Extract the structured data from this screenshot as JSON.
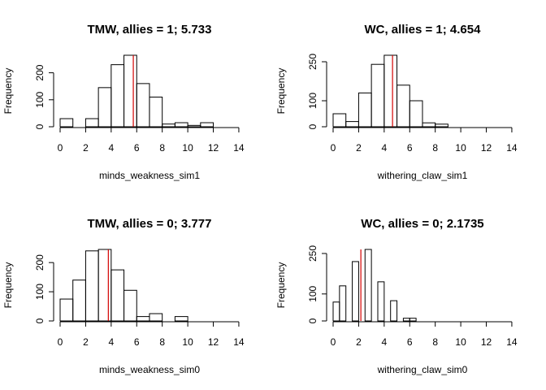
{
  "chart_data": [
    {
      "type": "bar",
      "title": "TMW, allies = 1; 5.733",
      "xlabel": "minds_weakness_sim1",
      "ylabel": "Frequency",
      "bin_width": 1,
      "bin_edges": [
        0,
        1,
        2,
        3,
        4,
        5,
        6,
        7,
        8,
        9,
        10,
        11,
        12
      ],
      "values": [
        30,
        0,
        30,
        145,
        230,
        265,
        160,
        110,
        10,
        15,
        5,
        15
      ],
      "mean": 5.733,
      "xlim": [
        0,
        14
      ],
      "ylim": [
        0,
        265
      ],
      "xticks": [
        "0",
        "2",
        "4",
        "6",
        "8",
        "10",
        "12",
        "14"
      ],
      "yticks": [
        "0",
        "100",
        "200"
      ],
      "grid": false
    },
    {
      "type": "bar",
      "title": "WC, allies = 1; 4.654",
      "xlabel": "withering_claw_sim1",
      "ylabel": "Frequency",
      "bin_width": 1,
      "bin_edges": [
        0,
        1,
        2,
        3,
        4,
        5,
        6,
        7,
        8,
        9
      ],
      "values": [
        50,
        20,
        130,
        240,
        275,
        160,
        100,
        15,
        10
      ],
      "mean": 4.654,
      "xlim": [
        0,
        14
      ],
      "ylim": [
        0,
        275
      ],
      "xticks": [
        "0",
        "2",
        "4",
        "6",
        "8",
        "10",
        "12",
        "14"
      ],
      "yticks": [
        "0",
        "100",
        "250"
      ],
      "grid": false
    },
    {
      "type": "bar",
      "title": "TMW, allies = 0; 3.777",
      "xlabel": "minds_weakness_sim0",
      "ylabel": "Frequency",
      "bin_width": 1,
      "bin_edges": [
        0,
        1,
        2,
        3,
        4,
        5,
        6,
        7,
        8,
        9,
        10
      ],
      "values": [
        75,
        140,
        240,
        245,
        175,
        105,
        15,
        25,
        0,
        15
      ],
      "mean": 3.777,
      "xlim": [
        0,
        14
      ],
      "ylim": [
        0,
        245
      ],
      "xticks": [
        "0",
        "2",
        "4",
        "6",
        "8",
        "10",
        "12",
        "14"
      ],
      "yticks": [
        "0",
        "100",
        "200"
      ],
      "grid": false
    },
    {
      "type": "bar",
      "title": "WC, allies = 0; 2.1735",
      "xlabel": "withering_claw_sim0",
      "ylabel": "Frequency",
      "bin_width": 0.5,
      "bin_edges": [
        0,
        0.5,
        1,
        1.5,
        2,
        2.5,
        3,
        3.5,
        4,
        4.5,
        5,
        5.5,
        6,
        6.5
      ],
      "values": [
        70,
        130,
        0,
        220,
        0,
        265,
        0,
        145,
        0,
        75,
        0,
        10,
        10
      ],
      "mean": 2.1735,
      "xlim": [
        0,
        14
      ],
      "ylim": [
        0,
        265
      ],
      "xticks": [
        "0",
        "2",
        "4",
        "6",
        "8",
        "10",
        "12",
        "14"
      ],
      "yticks": [
        "0",
        "100",
        "250"
      ],
      "grid": false
    }
  ]
}
